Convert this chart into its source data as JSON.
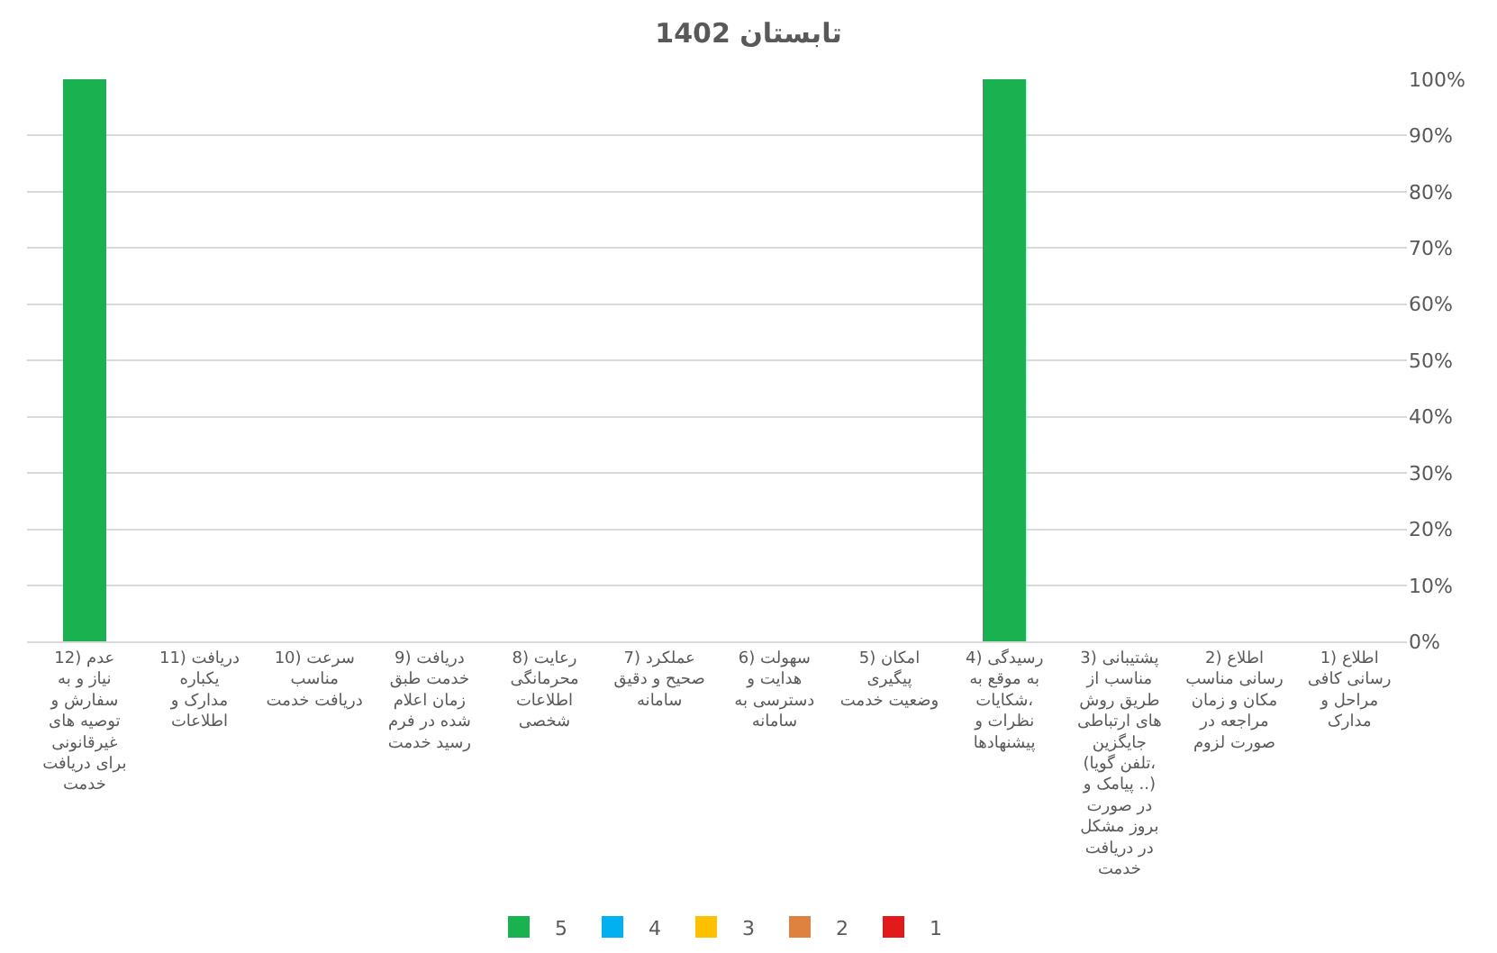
{
  "chart_data": {
    "type": "bar",
    "title": "تابستان 1402",
    "stacked": true,
    "categories": [
      "12) عدم نیاز و به سفارش و توصیه های غیرقانونی برای دریافت خدمت",
      "11) دریافت یکباره مدارک و اطلاعات",
      "10) سرعت مناسب دریافت خدمت",
      "9) دریافت خدمت طبق زمان اعلام شده در فرم رسید خدمت",
      "8) رعایت محرمانگی اطلاعات شخصی",
      "7) عملکرد صحیح و دقیق سامانه",
      "6) سهولت هدایت و دسترسی به سامانه",
      "5) امکان پیگیری وضعیت خدمت",
      "4) رسیدگی به موقع به شکایات، نظرات و پیشنهادها",
      "3) پشتیبانی مناسب از طریق روش های ارتباطی جایگزین (تلفن گویا، پیامک و ..) در صورت بروز مشکل در دریافت خدمت",
      "2) اطلاع رسانی مناسب مکان و زمان مراجعه در صورت لزوم",
      "1) اطلاع رسانی کافی مراحل و مدارک"
    ],
    "series": [
      {
        "name": "1",
        "color": "#e31a1c",
        "values": [
          null,
          null,
          null,
          null,
          null,
          null,
          null,
          null,
          null,
          null,
          null,
          null
        ]
      },
      {
        "name": "2",
        "color": "#e0823f",
        "values": [
          null,
          null,
          null,
          null,
          null,
          null,
          null,
          null,
          null,
          null,
          null,
          null
        ]
      },
      {
        "name": "3",
        "color": "#ffc000",
        "values": [
          null,
          null,
          null,
          null,
          null,
          null,
          null,
          null,
          null,
          null,
          null,
          null
        ]
      },
      {
        "name": "4",
        "color": "#00b0f0",
        "values": [
          null,
          null,
          null,
          null,
          null,
          null,
          null,
          null,
          null,
          null,
          null,
          null
        ]
      },
      {
        "name": "5",
        "color": "#1ab150",
        "values": [
          100,
          null,
          null,
          null,
          null,
          null,
          null,
          null,
          100,
          null,
          null,
          null
        ]
      }
    ],
    "ylim": [
      0,
      100
    ],
    "yticks": [
      {
        "value": 0,
        "label": "0%"
      },
      {
        "value": 10,
        "label": "10%"
      },
      {
        "value": 20,
        "label": "20%"
      },
      {
        "value": 30,
        "label": "30%"
      },
      {
        "value": 40,
        "label": "40%"
      },
      {
        "value": 50,
        "label": "50%"
      },
      {
        "value": 60,
        "label": "60%"
      },
      {
        "value": 70,
        "label": "70%"
      },
      {
        "value": 80,
        "label": "80%"
      },
      {
        "value": 90,
        "label": "90%"
      },
      {
        "value": 100,
        "label": "100%"
      }
    ],
    "grid": "y",
    "legend": "bottom"
  }
}
